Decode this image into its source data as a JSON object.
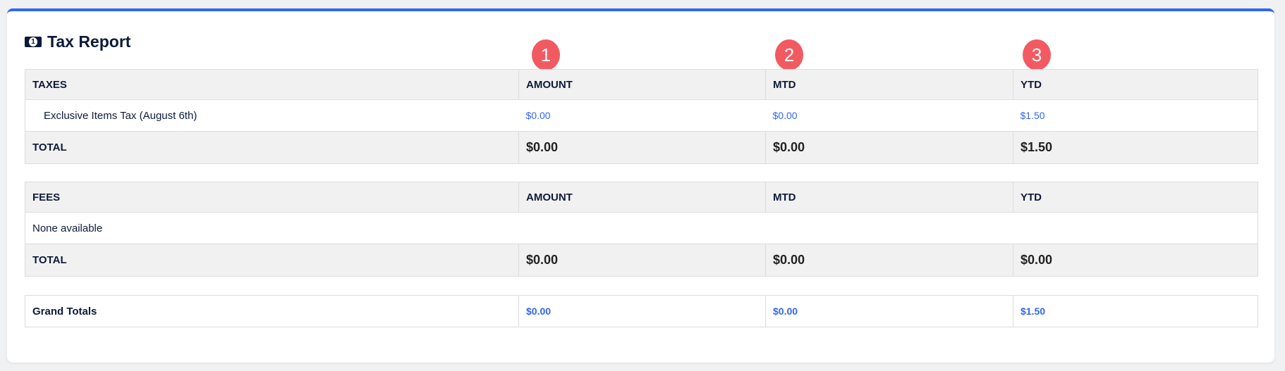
{
  "title": "Tax Report",
  "badges": [
    "1",
    "2",
    "3"
  ],
  "colors": {
    "accent": "#3366f0",
    "badge": "#f25a62"
  },
  "taxes": {
    "headers": [
      "TAXES",
      "AMOUNT",
      "MTD",
      "YTD"
    ],
    "rows": [
      {
        "name": "Exclusive Items Tax (August 6th)",
        "amount": "$0.00",
        "mtd": "$0.00",
        "ytd": "$1.50"
      }
    ],
    "total": {
      "label": "TOTAL",
      "amount": "$0.00",
      "mtd": "$0.00",
      "ytd": "$1.50"
    }
  },
  "fees": {
    "headers": [
      "FEES",
      "AMOUNT",
      "MTD",
      "YTD"
    ],
    "empty": "None available",
    "total": {
      "label": "TOTAL",
      "amount": "$0.00",
      "mtd": "$0.00",
      "ytd": "$0.00"
    }
  },
  "grand": {
    "label": "Grand Totals",
    "amount": "$0.00",
    "mtd": "$0.00",
    "ytd": "$1.50"
  }
}
